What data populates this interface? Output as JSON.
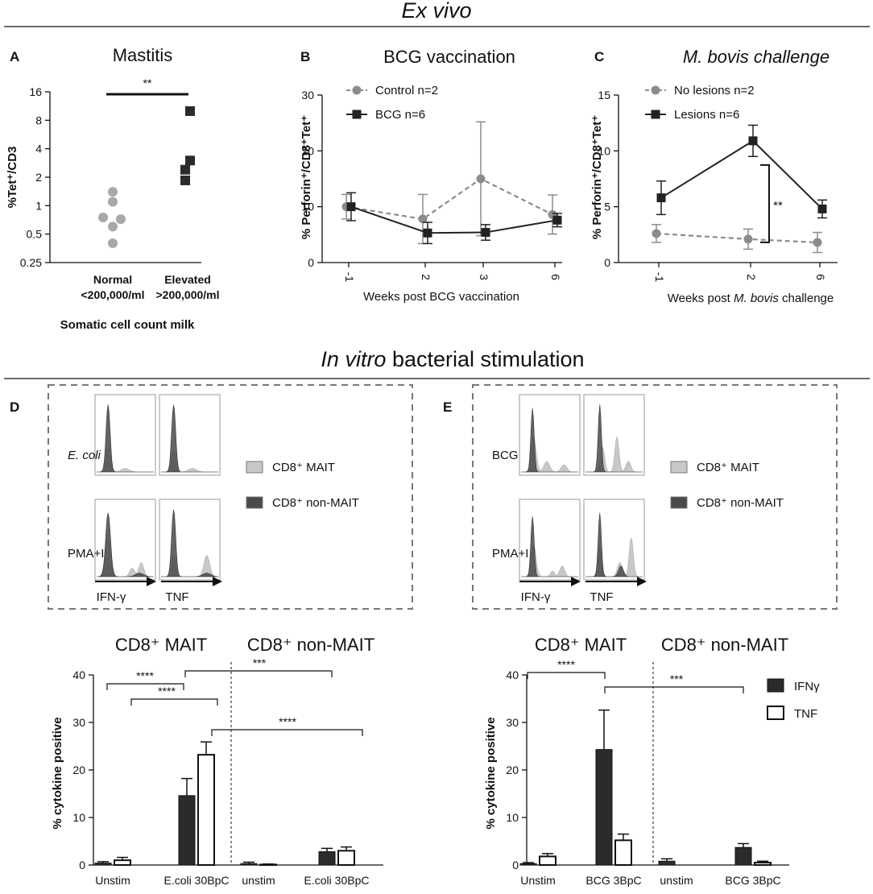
{
  "sections": {
    "ex_vivo": {
      "word": "Ex vivo"
    },
    "in_vitro": {
      "italic": "In vitro",
      "rest": " bacterial stimulation"
    }
  },
  "panel_letters": [
    "A",
    "B",
    "C",
    "D",
    "E"
  ],
  "chart_data": [
    {
      "id": "A",
      "type": "scatter",
      "title": "Mastitis",
      "ylabel": "%Tet⁺/CD3",
      "xlabel": "Somatic cell count milk",
      "yscale": "log2",
      "ylim": [
        0.25,
        16
      ],
      "yticks": [
        "0.25",
        "0.5",
        "1",
        "2",
        "4",
        "8",
        "16"
      ],
      "categories": [
        {
          "line1": "Normal",
          "line2": "<200,000/ml"
        },
        {
          "line1": "Elevated",
          "line2": ">200,000/ml"
        }
      ],
      "series": [
        {
          "name": "Normal",
          "marker": "circle",
          "color": "#a8a8a8",
          "values": [
            1.4,
            1.1,
            0.75,
            0.72,
            0.6,
            0.4
          ]
        },
        {
          "name": "Elevated",
          "marker": "square",
          "color": "#2b2b2b",
          "values": [
            10.0,
            3.0,
            2.4,
            1.85
          ]
        }
      ],
      "annotations": [
        {
          "text": "**",
          "between": [
            "Normal",
            "Elevated"
          ]
        }
      ]
    },
    {
      "id": "B",
      "type": "line",
      "title": "BCG vaccination",
      "ylabel": "% Perforin⁺/CD8⁺Tet⁺",
      "xlabel": "Weeks post BCG vaccination",
      "ylim": [
        0,
        30
      ],
      "yticks": [
        0,
        10,
        20,
        30
      ],
      "x": [
        "-1",
        "2",
        "3",
        "6"
      ],
      "series": [
        {
          "name": "Control n=2",
          "style": "dashed",
          "marker": "circle",
          "color": "#8c8c8c",
          "values": [
            10.0,
            7.8,
            15.0,
            8.6
          ],
          "err": [
            2.2,
            4.4,
            10.2,
            3.5
          ]
        },
        {
          "name": "BCG n=6",
          "style": "solid",
          "marker": "square",
          "color": "#222222",
          "values": [
            10.0,
            5.3,
            5.4,
            7.6
          ],
          "err": [
            2.5,
            1.9,
            1.4,
            1.2
          ]
        }
      ],
      "legend": "top-left"
    },
    {
      "id": "C",
      "type": "line",
      "title": "M. bovis challenge",
      "ylabel": "% Perforin⁺/CD8⁺Tet⁺",
      "xlabel_plain": "Weeks post ",
      "xlabel_italic": "M. bovis",
      "xlabel_tail": " challenge",
      "ylim": [
        0,
        15
      ],
      "yticks": [
        0,
        5,
        10,
        15
      ],
      "x": [
        "-1",
        "2",
        "6"
      ],
      "series": [
        {
          "name": "No lesions n=2",
          "style": "dashed",
          "marker": "circle",
          "color": "#8c8c8c",
          "values": [
            2.6,
            2.1,
            1.8
          ],
          "err": [
            0.8,
            0.9,
            0.9
          ]
        },
        {
          "name": "Lesions n=6",
          "style": "solid",
          "marker": "square",
          "color": "#222222",
          "values": [
            5.8,
            10.9,
            4.8
          ],
          "err": [
            1.5,
            1.4,
            0.8
          ]
        }
      ],
      "annotations": [
        {
          "text": "**",
          "at_x": "2"
        }
      ],
      "legend": "top-left"
    },
    {
      "id": "D",
      "type": "bar",
      "group_titles": [
        "CD8⁺ MAIT",
        "CD8⁺ non-MAIT"
      ],
      "ylabel": "% cytokine positive",
      "ylim": [
        0,
        40
      ],
      "yticks": [
        0,
        10,
        20,
        30,
        40
      ],
      "categories": [
        "Unstim",
        "E.coli 30BpC",
        "unstim",
        "E.coli 30BpC"
      ],
      "series": [
        {
          "name": "IFNγ",
          "fill": "#2b2b2b",
          "values": [
            0.4,
            14.6,
            0.3,
            2.8
          ],
          "err": [
            0.3,
            3.6,
            0.3,
            0.7
          ]
        },
        {
          "name": "TNF",
          "fill": "#ffffff",
          "values": [
            1.0,
            23.2,
            0.1,
            3.0
          ],
          "err": [
            0.6,
            2.7,
            0.1,
            0.8
          ]
        }
      ],
      "significance": [
        "****",
        "****",
        "***",
        "****"
      ],
      "flow_inset": {
        "row_labels": [
          "E. coli",
          "PMA+I"
        ],
        "column_labels": [
          "IFN-γ",
          "TNF"
        ],
        "legend": [
          "CD8⁺ MAIT",
          "CD8⁺ non-MAIT"
        ],
        "legend_colors": [
          "#c8c8c8",
          "#4a4a4a"
        ]
      }
    },
    {
      "id": "E",
      "type": "bar",
      "group_titles": [
        "CD8⁺ MAIT",
        "CD8⁺ non-MAIT"
      ],
      "ylabel": "% cytokine positive",
      "ylim": [
        0,
        40
      ],
      "yticks": [
        0,
        10,
        20,
        30,
        40
      ],
      "categories": [
        "Unstim",
        "BCG 3BpC",
        "unstim",
        "BCG 3BpC"
      ],
      "series": [
        {
          "name": "IFNγ",
          "fill": "#2b2b2b",
          "values": [
            0.3,
            24.3,
            0.8,
            3.7
          ],
          "err": [
            0.2,
            8.3,
            0.5,
            0.8
          ]
        },
        {
          "name": "TNF",
          "fill": "#ffffff",
          "values": [
            1.8,
            5.2,
            0.0,
            0.5
          ],
          "err": [
            0.6,
            1.3,
            0.0,
            0.3
          ]
        }
      ],
      "significance": [
        "****",
        "***"
      ],
      "legend": "top-right",
      "flow_inset": {
        "row_labels": [
          "BCG",
          "PMA+I"
        ],
        "column_labels": [
          "IFN-γ",
          "TNF"
        ],
        "legend": [
          "CD8⁺ MAIT",
          "CD8⁺ non-MAIT"
        ],
        "legend_colors": [
          "#c8c8c8",
          "#4a4a4a"
        ]
      }
    }
  ]
}
